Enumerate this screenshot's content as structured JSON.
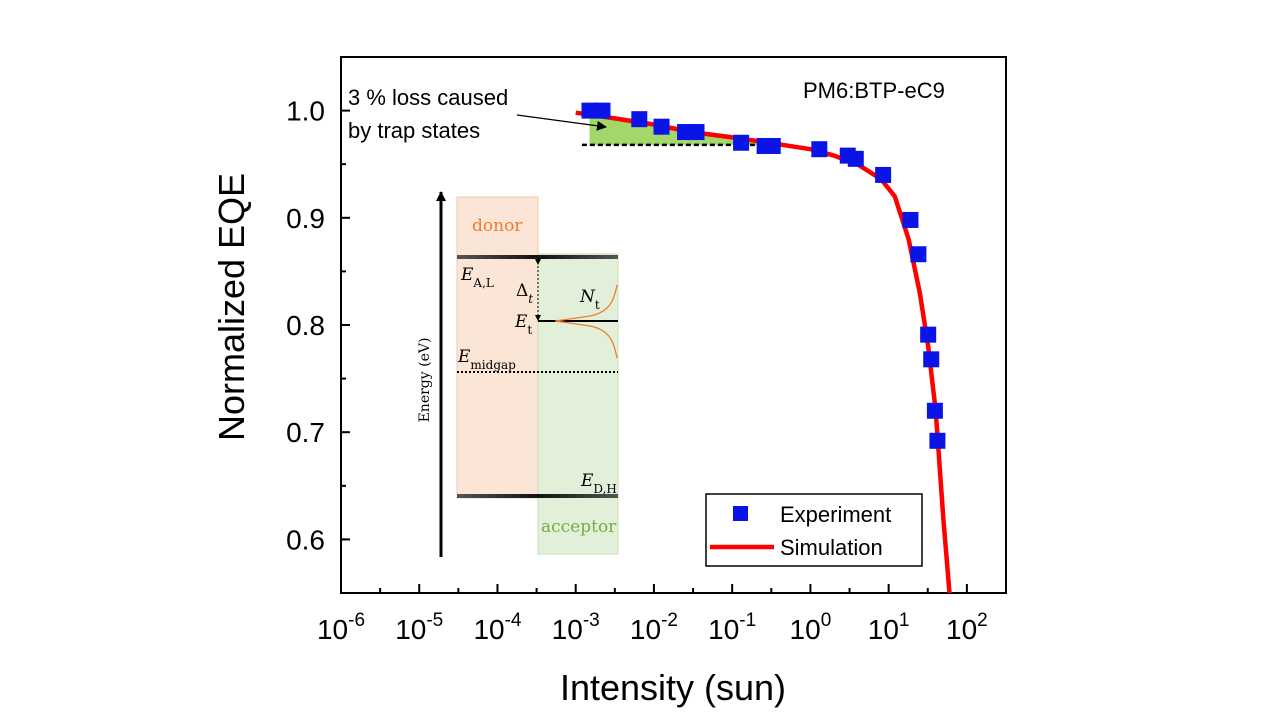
{
  "chart_data": {
    "type": "scatter",
    "title": "",
    "xlabel": "Intensity (sun)",
    "ylabel": "Normalized EQE",
    "x_scale": "log",
    "xlim_exponent": [
      -6,
      2.5
    ],
    "ylim": [
      0.55,
      1.05
    ],
    "x_tick_base": "10",
    "x_tick_exponents": [
      "-6",
      "-5",
      "-4",
      "-3",
      "-2",
      "-1",
      "0",
      "1",
      "2"
    ],
    "y_ticks": [
      "0.6",
      "0.7",
      "0.8",
      "0.9",
      "1.0"
    ],
    "y_tick_values": [
      0.6,
      0.7,
      0.8,
      0.9,
      1.0
    ],
    "sample_label": "PM6:BTP-eC9",
    "annotation": {
      "line1": "3 % loss caused",
      "line2": "by trap states",
      "reference_level": 0.968
    },
    "legend": {
      "placement": "bottom-right",
      "experiment": "Experiment",
      "simulation": "Simulation"
    },
    "colors": {
      "experiment": "#0a14e6",
      "simulation": "#ff0000",
      "loss_fill": "#92d050"
    },
    "series": [
      {
        "name": "Experiment",
        "kind": "marker",
        "x": [
          0.0015,
          0.0022,
          0.0065,
          0.0125,
          0.025,
          0.035,
          0.13,
          0.26,
          0.33,
          1.3,
          3.0,
          3.8,
          8.5,
          19,
          24,
          32,
          35,
          39,
          42
        ],
        "y": [
          1.0,
          1.0,
          0.992,
          0.985,
          0.98,
          0.98,
          0.97,
          0.967,
          0.967,
          0.964,
          0.958,
          0.955,
          0.94,
          0.898,
          0.866,
          0.791,
          0.768,
          0.72,
          0.692
        ]
      },
      {
        "name": "Simulation",
        "kind": "line",
        "x": [
          0.001,
          0.003,
          0.01,
          0.03,
          0.1,
          0.3,
          1,
          2,
          4,
          8,
          12,
          18,
          25,
          32,
          40,
          50,
          60
        ],
        "y": [
          0.998,
          0.993,
          0.987,
          0.98,
          0.975,
          0.97,
          0.964,
          0.958,
          0.95,
          0.936,
          0.92,
          0.88,
          0.83,
          0.78,
          0.72,
          0.62,
          0.55
        ]
      }
    ]
  },
  "inset": {
    "ylabel": "Energy (eV)",
    "donor": "donor",
    "acceptor": "acceptor",
    "E_AL": {
      "sym": "E",
      "sub": "A,L"
    },
    "delta_t": {
      "sym": "Δ",
      "sub": "t"
    },
    "E_t": {
      "sym": "E",
      "sub": "t"
    },
    "N_t": {
      "sym": "N",
      "sub": "t"
    },
    "E_midgap": {
      "sym": "E",
      "sub": "midgap"
    },
    "E_DH": {
      "sym": "E",
      "sub": "D,H"
    },
    "colors": {
      "donor_fill": "#fbe5d6",
      "acceptor_fill": "#e2f0d9",
      "donor_text": "#ed7d31",
      "acceptor_text": "#70ad47"
    }
  }
}
